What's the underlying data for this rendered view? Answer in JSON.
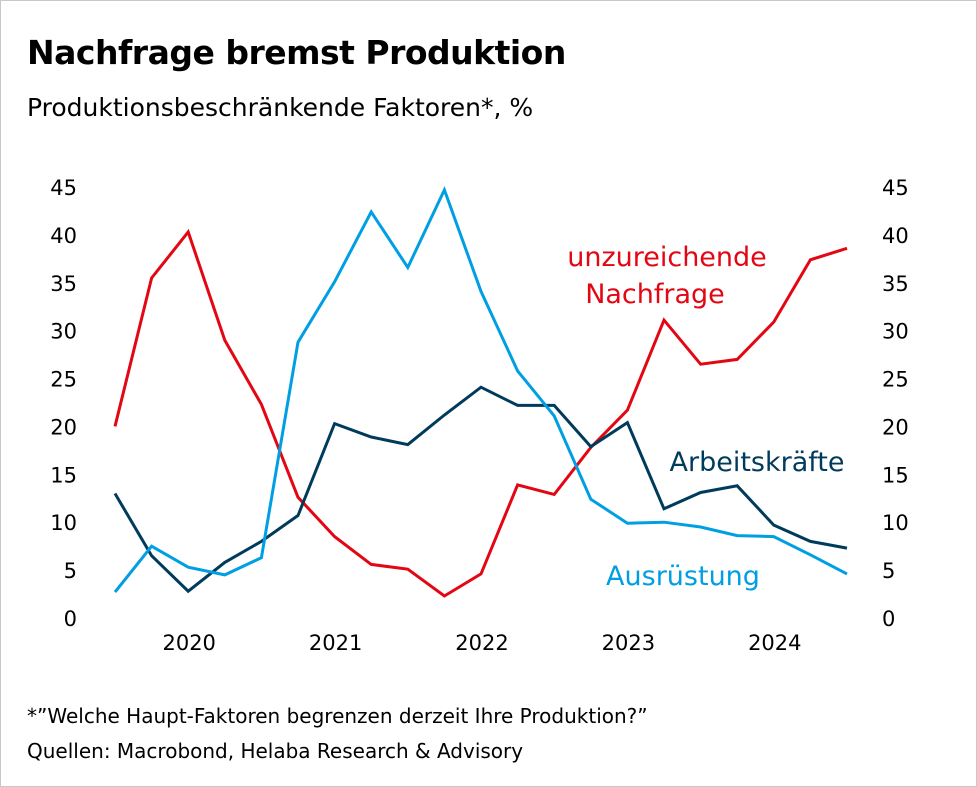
{
  "header": {
    "title": "Nachfrage bremst Produktion",
    "subtitle": "Produktionsbeschränkende Faktoren*, %"
  },
  "footer": {
    "footnote": "*”Welche Haupt-Faktoren begrenzen derzeit Ihre Produktion?”",
    "source": "Quellen: Macrobond, Helaba Research & Advisory"
  },
  "chart_data": {
    "type": "line",
    "title": "Nachfrage bremst Produktion",
    "subtitle": "Produktionsbeschränkende Faktoren*, %",
    "x": [
      "2019-Q3",
      "2019-Q4",
      "2020-Q1",
      "2020-Q2",
      "2020-Q3",
      "2020-Q4",
      "2021-Q1",
      "2021-Q2",
      "2021-Q3",
      "2021-Q4",
      "2022-Q1",
      "2022-Q2",
      "2022-Q3",
      "2022-Q4",
      "2023-Q1",
      "2023-Q2",
      "2023-Q3",
      "2023-Q4",
      "2024-Q1",
      "2024-Q2",
      "2024-Q3"
    ],
    "x_tick_labels": [
      "2020",
      "2021",
      "2022",
      "2023",
      "2024"
    ],
    "x_tick_positions": [
      "2020-Q1",
      "2021-Q1",
      "2022-Q1",
      "2023-Q1",
      "2024-Q1"
    ],
    "ylim": [
      0,
      45
    ],
    "yticks": [
      0,
      5,
      10,
      15,
      20,
      25,
      30,
      35,
      40,
      45
    ],
    "y_axis_both_sides": true,
    "grid": false,
    "series": [
      {
        "name": "unzureichende Nachfrage",
        "label_lines": [
          "unzureichende",
          "Nachfrage"
        ],
        "color": "#e30613",
        "values": [
          20.0,
          35.5,
          40.3,
          29.0,
          22.3,
          12.6,
          8.5,
          5.6,
          5.1,
          2.3,
          4.6,
          13.9,
          12.9,
          17.8,
          21.7,
          31.1,
          26.5,
          27.0,
          30.9,
          37.4,
          38.6
        ]
      },
      {
        "name": "Arbeitskräfte",
        "label_lines": [
          "Arbeitskräfte"
        ],
        "color": "#003b5c",
        "values": [
          13.0,
          6.5,
          2.8,
          5.8,
          8.0,
          10.7,
          20.3,
          18.9,
          18.1,
          21.2,
          24.1,
          22.2,
          22.2,
          17.9,
          20.4,
          11.4,
          13.1,
          13.8,
          9.7,
          8.0,
          7.3
        ]
      },
      {
        "name": "Ausrüstung",
        "label_lines": [
          "Ausrüstung"
        ],
        "color": "#009fe3",
        "values": [
          2.7,
          7.5,
          5.3,
          4.5,
          6.3,
          28.8,
          35.1,
          42.4,
          36.6,
          44.7,
          34.1,
          25.8,
          21.1,
          12.4,
          9.9,
          10.0,
          9.5,
          8.6,
          8.5,
          6.6,
          4.6
        ]
      }
    ]
  }
}
